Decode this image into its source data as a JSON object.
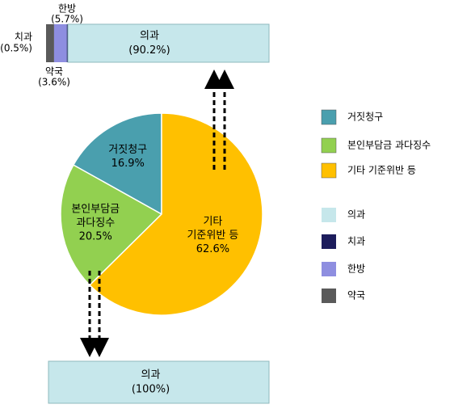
{
  "chart_data": [
    {
      "type": "bar",
      "orientation": "horizontal",
      "stacked": true,
      "series": [
        {
          "name": "의과",
          "color": "#c6e7eb",
          "values": [
            90.2
          ],
          "value_labels": [
            "(90.2%)"
          ]
        },
        {
          "name": "치과",
          "color": "#1c1c5c",
          "values": [
            0.5
          ],
          "value_labels": [
            "(0.5%)"
          ]
        },
        {
          "name": "한방",
          "color": "#8e8ee0",
          "values": [
            5.7
          ],
          "value_labels": [
            "(5.7%)"
          ]
        },
        {
          "name": "약국",
          "color": "#5a5a5a",
          "values": [
            3.6
          ],
          "value_labels": [
            "(3.6%)"
          ]
        }
      ]
    },
    {
      "type": "pie",
      "categories": [
        "거짓청구",
        "본인부담금 과다징수",
        "기타 기준위반 등"
      ],
      "slice_labels": [
        [
          "거짓청구"
        ],
        [
          "본인부담금",
          "과다징수"
        ],
        [
          "기타",
          "기준위반 등"
        ]
      ],
      "values": [
        16.9,
        20.5,
        62.6
      ],
      "value_labels": [
        "16.9%",
        "20.5%",
        "62.6%"
      ],
      "colors": [
        "#4a9fae",
        "#92d050",
        "#ffc000"
      ]
    },
    {
      "type": "bar",
      "orientation": "horizontal",
      "stacked": true,
      "series": [
        {
          "name": "의과",
          "color": "#c6e7eb",
          "values": [
            100
          ],
          "value_labels": [
            "(100%)"
          ]
        }
      ]
    }
  ]
}
